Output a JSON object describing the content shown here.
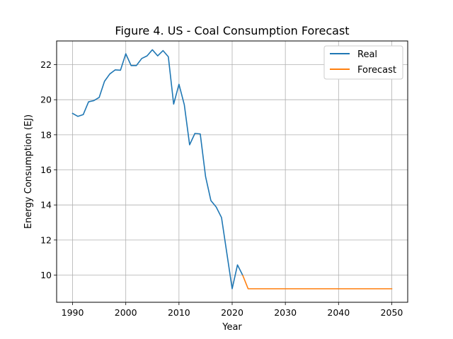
{
  "chart_data": {
    "type": "line",
    "title": "Figure 4. US - Coal Consumption Forecast",
    "xlabel": "Year",
    "ylabel": "Energy Consumption (EJ)",
    "xlim": [
      1987,
      2053
    ],
    "ylim": [
      8.45,
      23.35
    ],
    "xticks": [
      1990,
      2000,
      2010,
      2020,
      2030,
      2040,
      2050
    ],
    "yticks": [
      10,
      12,
      14,
      16,
      18,
      20,
      22
    ],
    "grid": true,
    "legend_position": "top-right",
    "series": [
      {
        "name": "Real",
        "color": "#1f77b4",
        "x": [
          1990,
          1991,
          1992,
          1993,
          1994,
          1995,
          1996,
          1997,
          1998,
          1999,
          2000,
          2001,
          2002,
          2003,
          2004,
          2005,
          2006,
          2007,
          2008,
          2009,
          2010,
          2011,
          2012,
          2013,
          2014,
          2015,
          2016,
          2017,
          2018,
          2019,
          2020,
          2021,
          2022
        ],
        "values": [
          19.22,
          19.05,
          19.15,
          19.88,
          19.95,
          20.13,
          21.05,
          21.47,
          21.7,
          21.68,
          22.62,
          21.95,
          21.95,
          22.35,
          22.5,
          22.85,
          22.5,
          22.8,
          22.45,
          19.75,
          20.88,
          19.72,
          17.43,
          18.08,
          18.05,
          15.62,
          14.25,
          13.88,
          13.28,
          11.25,
          9.22,
          10.58,
          9.98
        ]
      },
      {
        "name": "Forecast",
        "color": "#ff7f0e",
        "x": [
          2022,
          2023,
          2024,
          2025,
          2026,
          2027,
          2028,
          2029,
          2030,
          2031,
          2032,
          2033,
          2034,
          2035,
          2036,
          2037,
          2038,
          2039,
          2040,
          2041,
          2042,
          2043,
          2044,
          2045,
          2046,
          2047,
          2048,
          2049,
          2050
        ],
        "values": [
          9.98,
          9.22,
          9.22,
          9.22,
          9.22,
          9.22,
          9.22,
          9.22,
          9.22,
          9.22,
          9.22,
          9.22,
          9.22,
          9.22,
          9.22,
          9.22,
          9.22,
          9.22,
          9.22,
          9.22,
          9.22,
          9.22,
          9.22,
          9.22,
          9.22,
          9.22,
          9.22,
          9.22,
          9.22
        ]
      }
    ]
  }
}
